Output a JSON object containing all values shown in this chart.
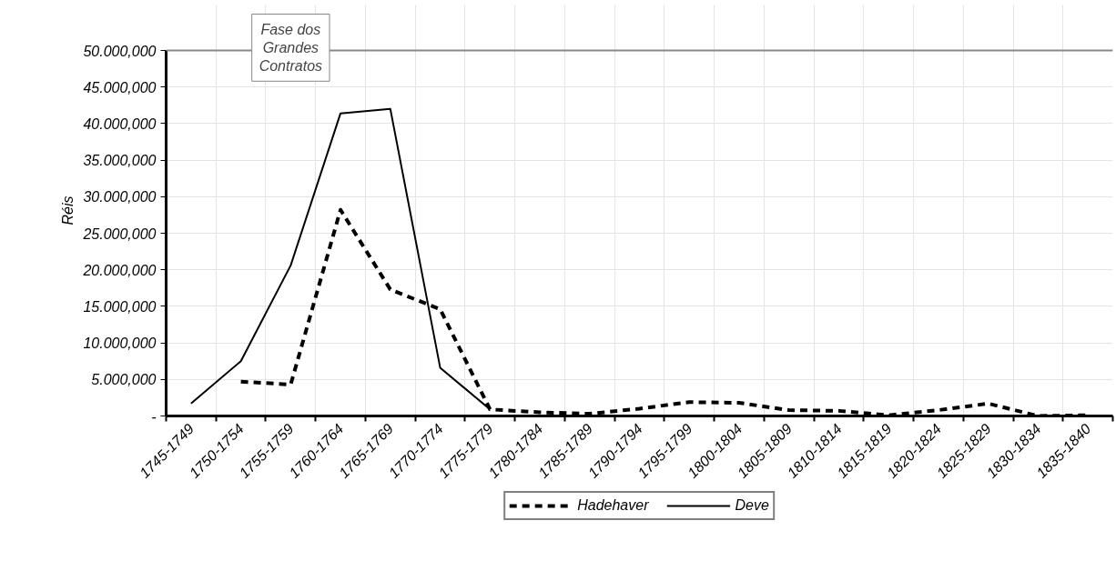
{
  "chart_data": {
    "type": "line",
    "ylabel": "Réis",
    "annotations": [
      "Fase dos Grandes Contratos"
    ],
    "categories": [
      "1745-1749",
      "1750-1754",
      "1755-1759",
      "1760-1764",
      "1765-1769",
      "1770-1774",
      "1775-1779",
      "1780-1784",
      "1785-1789",
      "1790-1794",
      "1795-1799",
      "1800-1804",
      "1805-1809",
      "1810-1814",
      "1815-1819",
      "1820-1824",
      "1825-1829",
      "1830-1834",
      "1835-1840"
    ],
    "series": [
      {
        "name": "Hadehaver",
        "color": "#000000",
        "line_style": "dashed",
        "values": [
          null,
          4700,
          4300,
          28200,
          17300,
          14600,
          900,
          500,
          300,
          1000,
          1900,
          1800,
          800,
          700,
          100,
          800,
          1700,
          0,
          100
        ]
      },
      {
        "name": "Deve",
        "color": "#000000",
        "line_style": "solid",
        "values": [
          1700,
          7500,
          20600,
          41400,
          42000,
          6600,
          900,
          null,
          null,
          null,
          null,
          null,
          null,
          null,
          null,
          null,
          null,
          null,
          null
        ]
      }
    ],
    "ylim": [
      0,
      50000
    ],
    "yticks": [
      {
        "value": 0,
        "label": "-"
      },
      {
        "value": 5000,
        "label": "5.000,000"
      },
      {
        "value": 10000,
        "label": "10.000,000"
      },
      {
        "value": 15000,
        "label": "15.000,000"
      },
      {
        "value": 20000,
        "label": "20.000,000"
      },
      {
        "value": 25000,
        "label": "25.000,000"
      },
      {
        "value": 30000,
        "label": "30.000,000"
      },
      {
        "value": 35000,
        "label": "35.000,000"
      },
      {
        "value": 40000,
        "label": "40.000,000"
      },
      {
        "value": 45000,
        "label": "45.000,000"
      },
      {
        "value": 50000,
        "label": "50.000,000"
      }
    ],
    "grid": true,
    "legend": "bottom"
  }
}
